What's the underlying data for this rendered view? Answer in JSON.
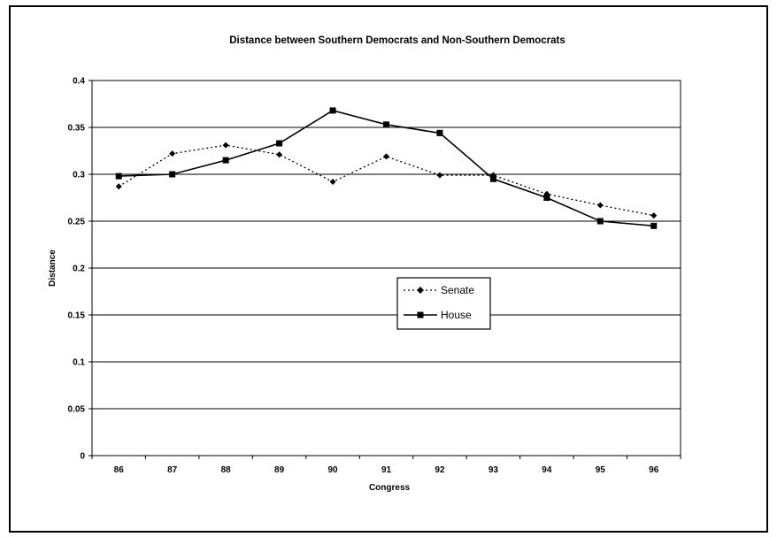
{
  "chart_data": {
    "type": "line",
    "title": "Distance between Southern Democrats and Non-Southern Democrats",
    "xlabel": "Congress",
    "ylabel": "Distance",
    "categories": [
      "86",
      "87",
      "88",
      "89",
      "90",
      "91",
      "92",
      "93",
      "94",
      "95",
      "96"
    ],
    "ylim": [
      0,
      0.4
    ],
    "yticks": [
      "0",
      "0.05",
      "0.1",
      "0.15",
      "0.2",
      "0.25",
      "0.3",
      "0.35",
      "0.4"
    ],
    "grid": true,
    "legend_position": "center-right",
    "series": [
      {
        "name": "Senate",
        "style": "dotted",
        "marker": "diamond",
        "color": "#000000",
        "values": [
          0.287,
          0.322,
          0.331,
          0.321,
          0.292,
          0.319,
          0.299,
          0.299,
          0.279,
          0.267,
          0.256
        ]
      },
      {
        "name": "House",
        "style": "solid",
        "marker": "square",
        "color": "#000000",
        "values": [
          0.298,
          0.3,
          0.315,
          0.333,
          0.368,
          0.353,
          0.344,
          0.295,
          0.275,
          0.25,
          0.245
        ]
      }
    ]
  }
}
